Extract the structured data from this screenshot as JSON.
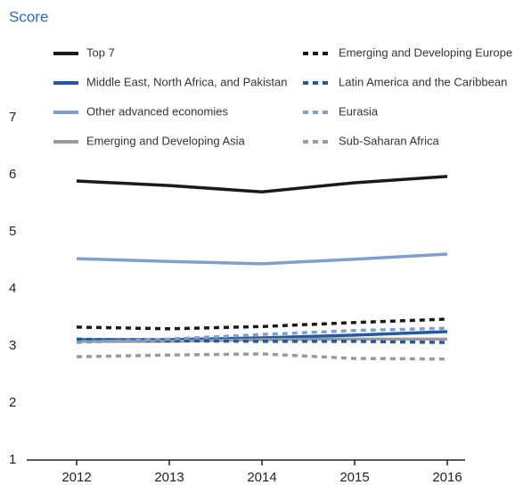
{
  "chart_data": {
    "type": "line",
    "title": "Score",
    "x": [
      2012,
      2013,
      2014,
      2015,
      2016
    ],
    "xlim": [
      2012,
      2016
    ],
    "xticks": [
      2012,
      2013,
      2014,
      2015,
      2016
    ],
    "ylim": [
      1,
      7
    ],
    "yticks": [
      1,
      2,
      3,
      4,
      5,
      6,
      7
    ],
    "grid": false,
    "series": [
      {
        "name": "Top 7",
        "color": "#1a1a1a",
        "dash": false,
        "values": [
          5.89,
          5.81,
          5.7,
          5.86,
          5.97
        ]
      },
      {
        "name": "Middle East, North Africa, and Pakistan",
        "color": "#1f5aa6",
        "dash": false,
        "values": [
          3.11,
          3.11,
          3.14,
          3.19,
          3.25
        ]
      },
      {
        "name": "Other advanced economies",
        "color": "#7f9fcf",
        "dash": false,
        "values": [
          4.53,
          4.48,
          4.44,
          4.52,
          4.61
        ]
      },
      {
        "name": "Emerging and Developing Asia",
        "color": "#9a9a9a",
        "dash": false,
        "values": [
          3.08,
          3.08,
          3.11,
          3.12,
          3.12
        ]
      },
      {
        "name": "Emerging and Developing Europe",
        "color": "#1a1a1a",
        "dash": true,
        "values": [
          3.33,
          3.3,
          3.34,
          3.41,
          3.47
        ]
      },
      {
        "name": "Latin America and the Caribbean",
        "color": "#1f5aa6",
        "dash": true,
        "values": [
          3.12,
          3.09,
          3.08,
          3.08,
          3.06
        ]
      },
      {
        "name": "Eurasia",
        "color": "#7f9fcf",
        "dash": true,
        "values": [
          3.06,
          3.12,
          3.2,
          3.27,
          3.31
        ]
      },
      {
        "name": "Sub-Saharan Africa",
        "color": "#9a9a9a",
        "dash": true,
        "values": [
          2.81,
          2.84,
          2.86,
          2.78,
          2.77
        ]
      }
    ]
  }
}
